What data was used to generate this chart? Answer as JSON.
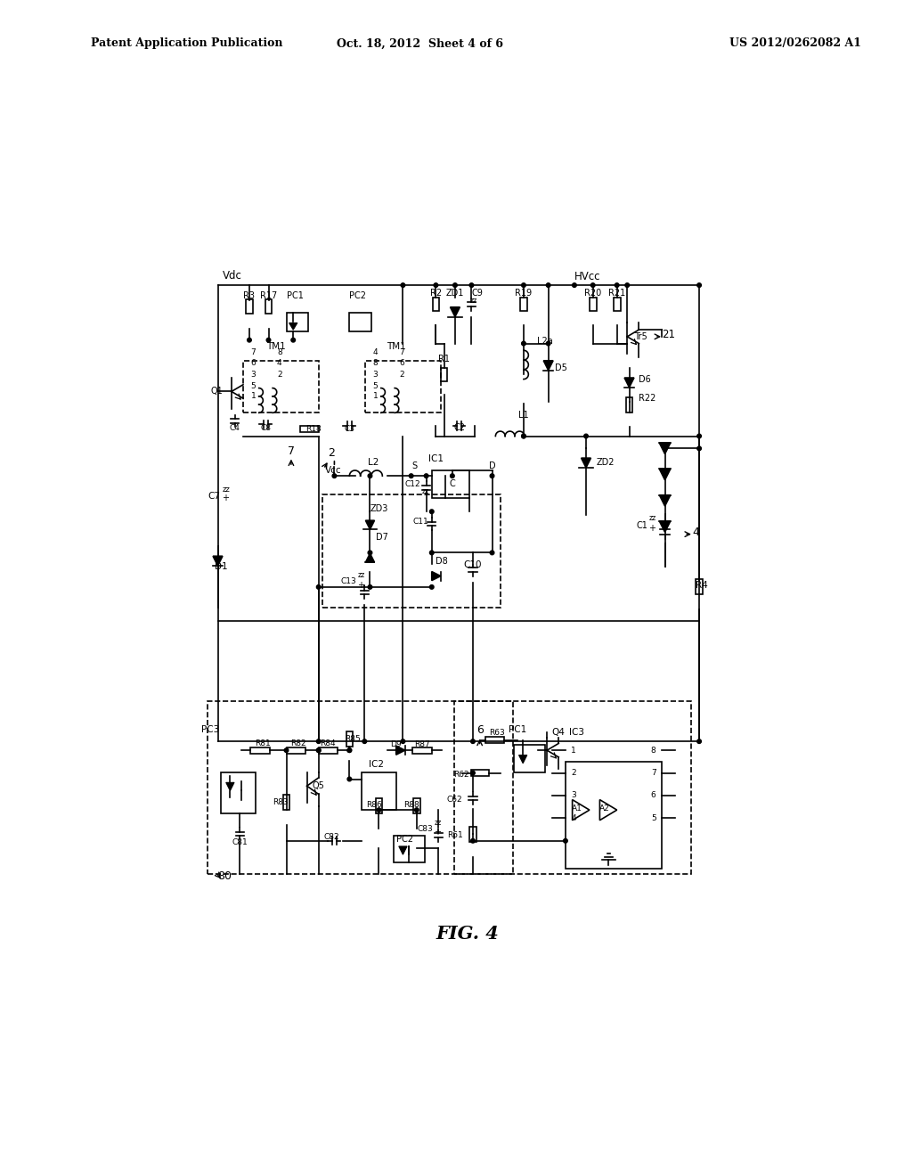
{
  "title": "FIG. 4",
  "header_left": "Patent Application Publication",
  "header_center": "Oct. 18, 2012  Sheet 4 of 6",
  "header_right": "US 2012/0262082 A1",
  "bg_color": "#ffffff",
  "line_color": "#000000",
  "figure_width": 10.24,
  "figure_height": 13.2
}
